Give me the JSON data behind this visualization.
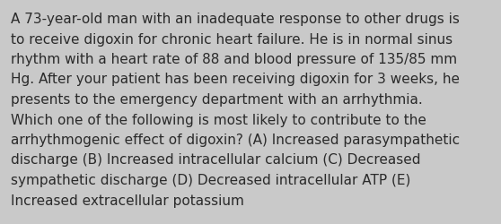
{
  "lines": [
    "A 73-year-old man with an inadequate response to other drugs is",
    "to receive digoxin for chronic heart failure. He is in normal sinus",
    "rhythm with a heart rate of 88 and blood pressure of 135/85 mm",
    "Hg. After your patient has been receiving digoxin for 3 weeks, he",
    "presents to the emergency department with an arrhythmia.",
    "Which one of the following is most likely to contribute to the",
    "arrhythmogenic effect of digoxin? (A) Increased parasympathetic",
    "discharge (B) Increased intracellular calcium (C) Decreased",
    "sympathetic discharge (D) Decreased intracellular ATP (E)",
    "Increased extracellular potassium"
  ],
  "background_color": "#c9c9c9",
  "text_color": "#2a2a2a",
  "font_size": 11.0,
  "font_family": "DejaVu Sans",
  "fig_width": 5.58,
  "fig_height": 2.51,
  "dpi": 100
}
